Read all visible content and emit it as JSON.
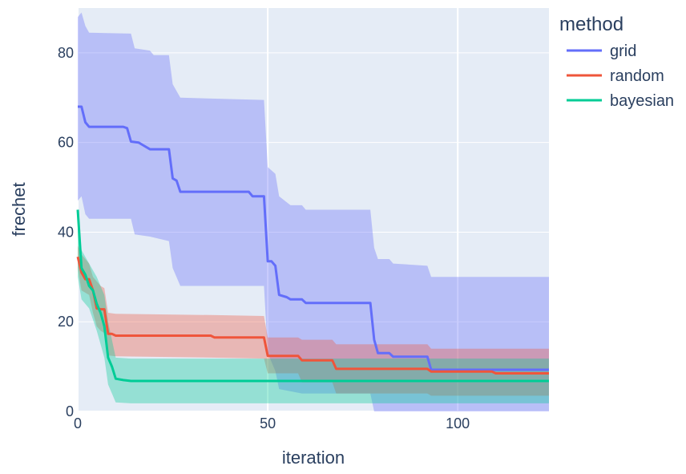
{
  "chart_data": {
    "type": "line",
    "xlabel": "iteration",
    "ylabel": "frechet",
    "xlim": [
      0,
      124
    ],
    "ylim": [
      0,
      90
    ],
    "xticks": [
      0,
      50,
      100
    ],
    "yticks": [
      0,
      20,
      40,
      60,
      80
    ],
    "grid": true,
    "legend": {
      "title": "method",
      "position": "top-right-outside"
    },
    "series": [
      {
        "name": "grid",
        "color": "#636efa",
        "band_color": "rgba(99,110,250,0.35)",
        "mean": [
          [
            0,
            68
          ],
          [
            1,
            68
          ],
          [
            2,
            64.5
          ],
          [
            3,
            63.5
          ],
          [
            12,
            63.5
          ],
          [
            13,
            63.2
          ],
          [
            14,
            60.2
          ],
          [
            16,
            60
          ],
          [
            17,
            59.5
          ],
          [
            19,
            58.5
          ],
          [
            24,
            58.5
          ],
          [
            25,
            52
          ],
          [
            26,
            51.5
          ],
          [
            27,
            49
          ],
          [
            45,
            49
          ],
          [
            46,
            48
          ],
          [
            49,
            48
          ],
          [
            50,
            33.5
          ],
          [
            51,
            33.5
          ],
          [
            52,
            32.5
          ],
          [
            53,
            26
          ],
          [
            55,
            25.5
          ],
          [
            56,
            25
          ],
          [
            59,
            25
          ],
          [
            60,
            24.2
          ],
          [
            77,
            24.2
          ],
          [
            78,
            16
          ],
          [
            79,
            13
          ],
          [
            82,
            13
          ],
          [
            83,
            12.2
          ],
          [
            92,
            12.2
          ],
          [
            93,
            9.3
          ],
          [
            124,
            9.3
          ]
        ],
        "upper": [
          [
            0,
            88
          ],
          [
            1,
            89
          ],
          [
            2,
            86
          ],
          [
            3,
            84.5
          ],
          [
            14,
            84.3
          ],
          [
            15,
            81
          ],
          [
            19,
            80.5
          ],
          [
            20,
            79.5
          ],
          [
            24,
            79.5
          ],
          [
            25,
            73
          ],
          [
            27,
            70
          ],
          [
            49,
            69.5
          ],
          [
            50,
            54.5
          ],
          [
            52,
            53
          ],
          [
            53,
            48
          ],
          [
            56,
            46
          ],
          [
            59,
            46
          ],
          [
            60,
            45
          ],
          [
            77,
            45
          ],
          [
            78,
            36.5
          ],
          [
            79,
            34
          ],
          [
            82,
            34
          ],
          [
            83,
            33
          ],
          [
            92,
            32.5
          ],
          [
            93,
            30
          ],
          [
            124,
            30
          ]
        ],
        "lower": [
          [
            0,
            47
          ],
          [
            1,
            48
          ],
          [
            2,
            44
          ],
          [
            3,
            43
          ],
          [
            14,
            43
          ],
          [
            15,
            39.5
          ],
          [
            19,
            39
          ],
          [
            24,
            38
          ],
          [
            25,
            32
          ],
          [
            27,
            28
          ],
          [
            49,
            28
          ],
          [
            50,
            13
          ],
          [
            52,
            9
          ],
          [
            53,
            5
          ],
          [
            56,
            4.5
          ],
          [
            59,
            4
          ],
          [
            77,
            4
          ],
          [
            78,
            0
          ],
          [
            124,
            0
          ]
        ]
      },
      {
        "name": "random",
        "color": "#ef553b",
        "band_color": "rgba(239,85,59,0.35)",
        "mean": [
          [
            0,
            34.5
          ],
          [
            1,
            31
          ],
          [
            2,
            29.5
          ],
          [
            3,
            29.5
          ],
          [
            4,
            27
          ],
          [
            5,
            23
          ],
          [
            6,
            22.8
          ],
          [
            7,
            22.8
          ],
          [
            8,
            17.3
          ],
          [
            9,
            17.3
          ],
          [
            10,
            16.9
          ],
          [
            35,
            16.9
          ],
          [
            36,
            16.5
          ],
          [
            49,
            16.5
          ],
          [
            50,
            12.4
          ],
          [
            58,
            12.4
          ],
          [
            59,
            11.4
          ],
          [
            67,
            11.4
          ],
          [
            68,
            9.5
          ],
          [
            92,
            9.5
          ],
          [
            93,
            8.9
          ],
          [
            109,
            8.9
          ],
          [
            110,
            8.5
          ],
          [
            124,
            8.5
          ]
        ],
        "upper": [
          [
            0,
            37
          ],
          [
            1,
            35
          ],
          [
            3,
            33
          ],
          [
            4,
            30
          ],
          [
            6,
            28
          ],
          [
            7,
            27.5
          ],
          [
            8,
            22
          ],
          [
            10,
            21.8
          ],
          [
            35,
            21.5
          ],
          [
            49,
            21.3
          ],
          [
            50,
            16.5
          ],
          [
            58,
            16.5
          ],
          [
            59,
            16
          ],
          [
            67,
            16
          ],
          [
            68,
            15
          ],
          [
            92,
            15
          ],
          [
            93,
            14
          ],
          [
            124,
            14
          ]
        ],
        "lower": [
          [
            0,
            32
          ],
          [
            1,
            27
          ],
          [
            3,
            26
          ],
          [
            4,
            22
          ],
          [
            5,
            19
          ],
          [
            6,
            18
          ],
          [
            7,
            17.5
          ],
          [
            8,
            12.5
          ],
          [
            10,
            12.3
          ],
          [
            35,
            12
          ],
          [
            49,
            11.8
          ],
          [
            50,
            8.5
          ],
          [
            58,
            8.5
          ],
          [
            59,
            6.5
          ],
          [
            67,
            6.5
          ],
          [
            68,
            4
          ],
          [
            92,
            4
          ],
          [
            93,
            3.5
          ],
          [
            124,
            3.5
          ]
        ]
      },
      {
        "name": "bayesian",
        "color": "#00cc96",
        "band_color": "rgba(0,204,150,0.35)",
        "mean": [
          [
            0,
            45
          ],
          [
            1,
            32
          ],
          [
            2,
            30.5
          ],
          [
            3,
            28
          ],
          [
            4,
            27
          ],
          [
            5,
            24
          ],
          [
            6,
            22
          ],
          [
            7,
            19
          ],
          [
            8,
            12
          ],
          [
            9,
            10
          ],
          [
            10,
            7.3
          ],
          [
            12,
            7
          ],
          [
            14,
            6.8
          ],
          [
            124,
            6.8
          ]
        ],
        "upper": [
          [
            0,
            44
          ],
          [
            1,
            36
          ],
          [
            3,
            33
          ],
          [
            5,
            30
          ],
          [
            7,
            26
          ],
          [
            8,
            20
          ],
          [
            10,
            12
          ],
          [
            14,
            11.8
          ],
          [
            124,
            11.8
          ]
        ],
        "lower": [
          [
            0,
            30
          ],
          [
            1,
            25
          ],
          [
            3,
            23
          ],
          [
            5,
            18
          ],
          [
            7,
            12
          ],
          [
            8,
            6
          ],
          [
            9,
            4
          ],
          [
            10,
            2
          ],
          [
            14,
            1.8
          ],
          [
            124,
            1.8
          ]
        ]
      }
    ]
  }
}
